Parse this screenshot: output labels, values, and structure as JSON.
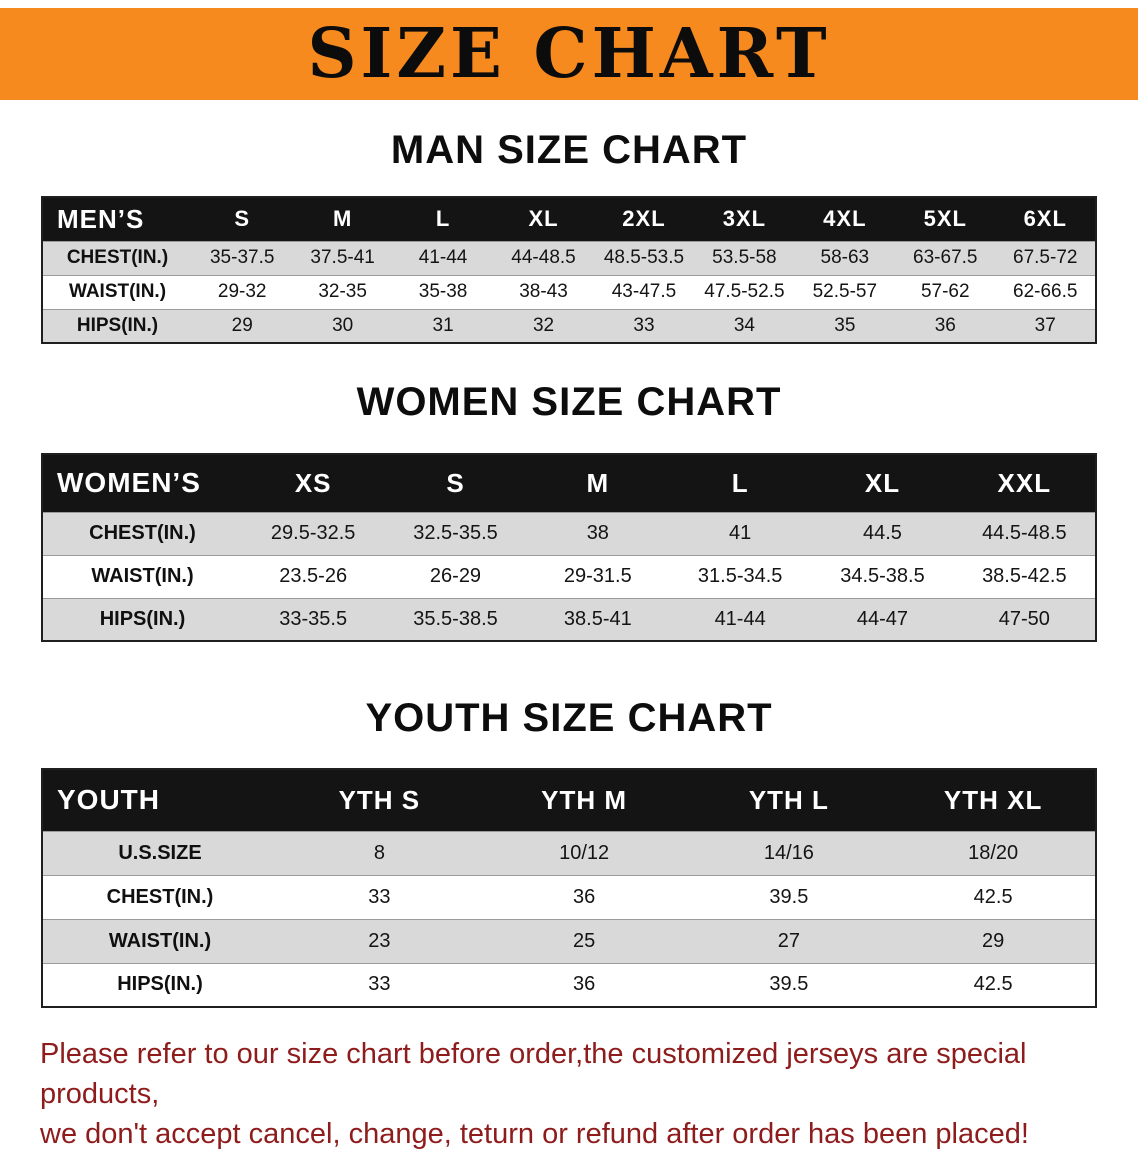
{
  "banner": {
    "title": "SIZE CHART"
  },
  "colors": {
    "banner_orange": "#f68a1e",
    "table_header_black": "#141414",
    "row_shade_gray": "#d9d9d9",
    "disclaimer_red": "#8e1c1c"
  },
  "sections": [
    {
      "heading": "MAN SIZE CHART",
      "table": {
        "header": [
          "MEN’S",
          "S",
          "M",
          "L",
          "XL",
          "2XL",
          "3XL",
          "4XL",
          "5XL",
          "6XL"
        ],
        "rows": [
          [
            "CHEST(IN.)",
            "35-37.5",
            "37.5-41",
            "41-44",
            "44-48.5",
            "48.5-53.5",
            "53.5-58",
            "58-63",
            "63-67.5",
            "67.5-72"
          ],
          [
            "WAIST(IN.)",
            "29-32",
            "32-35",
            "35-38",
            "38-43",
            "43-47.5",
            "47.5-52.5",
            "52.5-57",
            "57-62",
            "62-66.5"
          ],
          [
            "HIPS(IN.)",
            "29",
            "30",
            "31",
            "32",
            "33",
            "34",
            "35",
            "36",
            "37"
          ]
        ]
      }
    },
    {
      "heading": "WOMEN SIZE CHART",
      "table": {
        "header": [
          "WOMEN’S",
          "XS",
          "S",
          "M",
          "L",
          "XL",
          "XXL"
        ],
        "rows": [
          [
            "CHEST(IN.)",
            "29.5-32.5",
            "32.5-35.5",
            "38",
            "41",
            "44.5",
            "44.5-48.5"
          ],
          [
            "WAIST(IN.)",
            "23.5-26",
            "26-29",
            "29-31.5",
            "31.5-34.5",
            "34.5-38.5",
            "38.5-42.5"
          ],
          [
            "HIPS(IN.)",
            "33-35.5",
            "35.5-38.5",
            "38.5-41",
            "41-44",
            "44-47",
            "47-50"
          ]
        ]
      }
    },
    {
      "heading": "YOUTH SIZE CHART",
      "table": {
        "header": [
          "YOUTH",
          "YTH S",
          "YTH M",
          "YTH L",
          "YTH XL"
        ],
        "rows": [
          [
            "U.S.SIZE",
            "8",
            "10/12",
            "14/16",
            "18/20"
          ],
          [
            "CHEST(IN.)",
            "33",
            "36",
            "39.5",
            "42.5"
          ],
          [
            "WAIST(IN.)",
            "23",
            "25",
            "27",
            "29"
          ],
          [
            "HIPS(IN.)",
            "33",
            "36",
            "39.5",
            "42.5"
          ]
        ]
      }
    }
  ],
  "disclaimer": {
    "line1": "Please refer to our size chart before order,the customized jerseys are special products,",
    "line2": "we don't accept cancel, change, teturn or refund after order has been placed!"
  }
}
